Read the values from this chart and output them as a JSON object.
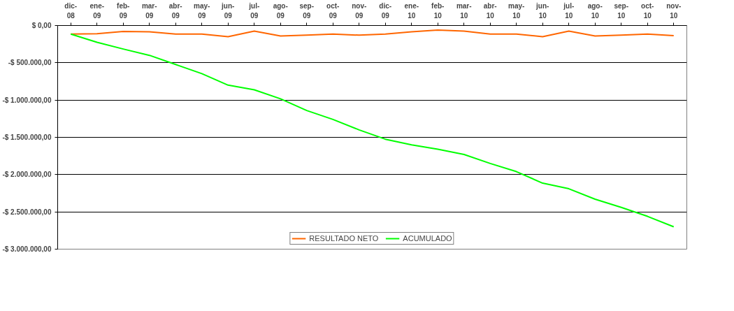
{
  "chart_data": {
    "type": "line",
    "categories": [
      "dic-08",
      "ene-09",
      "feb-09",
      "mar-09",
      "abr-09",
      "may-09",
      "jun-09",
      "jul-09",
      "ago-09",
      "sep-09",
      "oct-09",
      "nov-09",
      "dic-09",
      "ene-10",
      "feb-10",
      "mar-10",
      "abr-10",
      "may-10",
      "jun-10",
      "jul-10",
      "ago-10",
      "sep-10",
      "oct-10",
      "nov-10"
    ],
    "series": [
      {
        "name": "RESULTADO NETO",
        "color": "#ff6600",
        "values": [
          -115000,
          -110000,
          -80000,
          -85000,
          -115000,
          -115000,
          -150000,
          -75000,
          -140000,
          -130000,
          -115000,
          -130000,
          -115000,
          -85000,
          -60000,
          -75000,
          -115000,
          -115000,
          -150000,
          -75000,
          -140000,
          -130000,
          -115000,
          -135000
        ]
      },
      {
        "name": "ACUMULADO",
        "color": "#00ff00",
        "values": [
          -115000,
          -225000,
          -315000,
          -400000,
          -523000,
          -646000,
          -800000,
          -862000,
          -983000,
          -1140000,
          -1260000,
          -1400000,
          -1525000,
          -1600000,
          -1660000,
          -1730000,
          -1850000,
          -1960000,
          -2115000,
          -2190000,
          -2330000,
          -2440000,
          -2560000,
          -2700000
        ]
      }
    ],
    "ylim": [
      -3000000,
      0
    ],
    "yticks": [
      {
        "value": 0,
        "label": "$ 0,00"
      },
      {
        "value": -500000,
        "label": "-$ 500.000,00"
      },
      {
        "value": -1000000,
        "label": "-$ 1.000.000,00"
      },
      {
        "value": -1500000,
        "label": "-$ 1.500.000,00"
      },
      {
        "value": -2000000,
        "label": "-$ 2.000.000,00"
      },
      {
        "value": -2500000,
        "label": "-$ 2.500.000,00"
      },
      {
        "value": -3000000,
        "label": "-$ 3.000.000,00"
      }
    ],
    "grid": "y",
    "legend": "bottom",
    "marker": "none",
    "line_style": "solid"
  }
}
